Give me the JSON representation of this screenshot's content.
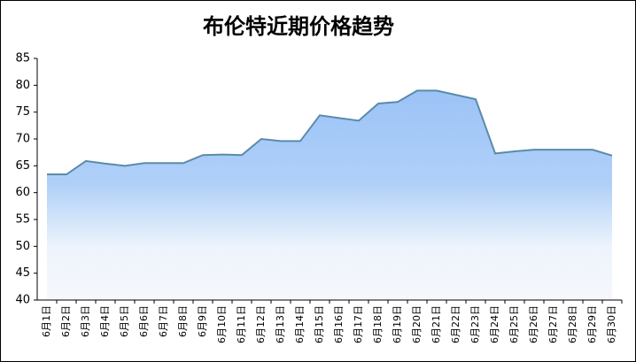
{
  "chart_data": {
    "type": "area",
    "title": "布伦特近期价格趋势",
    "categories": [
      "6月1日",
      "6月2日",
      "6月3日",
      "6月4日",
      "6月5日",
      "6月6日",
      "6月7日",
      "6月8日",
      "6月9日",
      "6月10日",
      "6月11日",
      "6月12日",
      "6月13日",
      "6月14日",
      "6月15日",
      "6月16日",
      "6月17日",
      "6月18日",
      "6月19日",
      "6月20日",
      "6月21日",
      "6月22日",
      "6月23日",
      "6月24日",
      "6月25日",
      "6月26日",
      "6月27日",
      "6月28日",
      "6月29日",
      "6月30日"
    ],
    "values": [
      63.4,
      63.4,
      65.9,
      65.4,
      65.0,
      65.5,
      65.5,
      65.5,
      67.0,
      67.1,
      67.0,
      70.0,
      69.6,
      69.6,
      74.4,
      73.9,
      73.4,
      76.6,
      76.9,
      79.0,
      79.0,
      78.2,
      77.4,
      67.3,
      67.7,
      68.0,
      68.0,
      68.0,
      68.0,
      66.9
    ],
    "color": "#5a8bab",
    "ylim": [
      40,
      85
    ],
    "yticks": [
      40,
      45,
      50,
      55,
      60,
      65,
      70,
      75,
      80,
      85
    ]
  }
}
